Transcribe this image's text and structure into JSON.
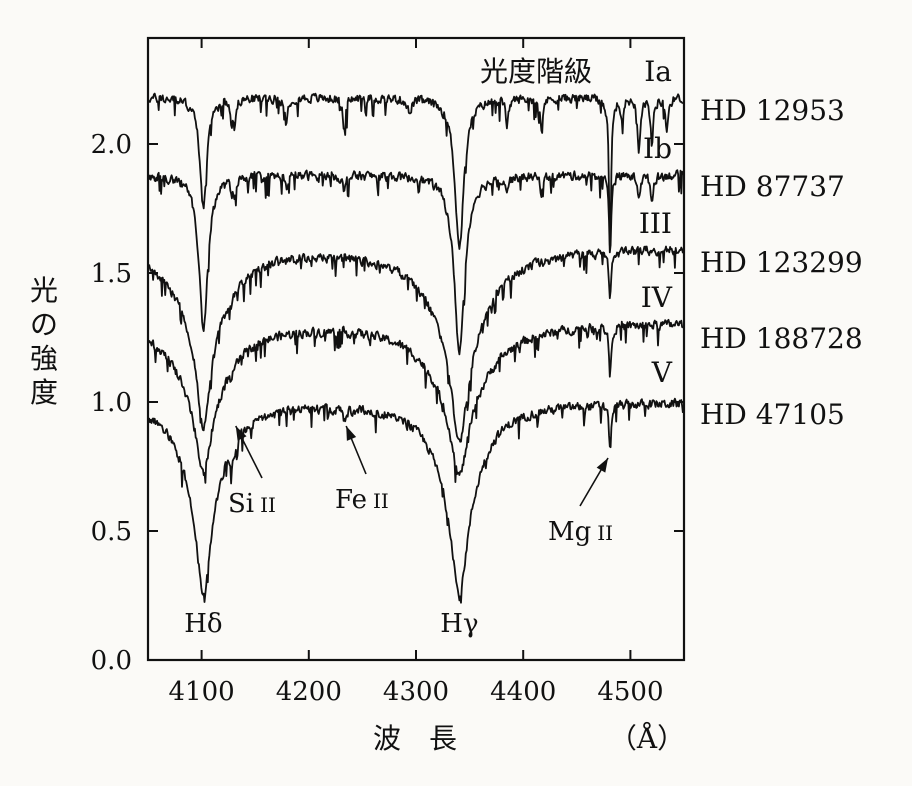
{
  "chart_data": {
    "type": "line",
    "title": "",
    "xlabel": "波　長",
    "x_unit_label": "（Å）",
    "ylabel": "光の強度",
    "xlim": [
      4050,
      4550
    ],
    "ylim": [
      0,
      2.5
    ],
    "xticks": [
      4100,
      4200,
      4300,
      4400,
      4500
    ],
    "xtick_labels": [
      "4100",
      "4200",
      "4300",
      "4400",
      "4500"
    ],
    "yticks": [
      0.0,
      0.5,
      1.0,
      1.5,
      2.0
    ],
    "ytick_labels": [
      "0.0",
      "0.5",
      "1.0",
      "1.5",
      "2.0"
    ],
    "grid": false,
    "class_header": "光度階級",
    "series": [
      {
        "name": "HD 12953",
        "luminosity_class": "Ia",
        "baseline": 2.18,
        "lines": [
          [
            4101.7,
            0.42,
            4
          ],
          [
            4128,
            0.08,
            1.2
          ],
          [
            4131,
            0.1,
            1.2
          ],
          [
            4179,
            0.1,
            1.5
          ],
          [
            4233,
            0.12,
            1.5
          ],
          [
            4294,
            0.06,
            2
          ],
          [
            4340.5,
            0.58,
            5
          ],
          [
            4385,
            0.1,
            1.5
          ],
          [
            4417,
            0.12,
            1.5
          ],
          [
            4481,
            0.6,
            1.2
          ],
          [
            4492,
            0.08,
            1.5
          ],
          [
            4508,
            0.2,
            1.5
          ],
          [
            4520,
            0.18,
            1.5
          ],
          [
            4534,
            0.12,
            1.5
          ]
        ]
      },
      {
        "name": "HD 87737",
        "luminosity_class": "Ib",
        "baseline": 1.88,
        "lines": [
          [
            4101.7,
            0.6,
            5
          ],
          [
            4128,
            0.05,
            1.2
          ],
          [
            4131,
            0.06,
            1.2
          ],
          [
            4179,
            0.05,
            1.5
          ],
          [
            4233,
            0.07,
            1.5
          ],
          [
            4340.5,
            0.68,
            6
          ],
          [
            4385,
            0.05,
            1.5
          ],
          [
            4417,
            0.06,
            1.5
          ],
          [
            4481,
            0.3,
            1.2
          ],
          [
            4508,
            0.08,
            1.5
          ],
          [
            4520,
            0.1,
            1.5
          ]
        ]
      },
      {
        "name": "HD 123299",
        "luminosity_class": "III",
        "baseline": 1.6,
        "lines": [
          [
            4101.7,
            0.35,
            7
          ],
          [
            4101.7,
            0.34,
            26
          ],
          [
            4128,
            0.04,
            1.2
          ],
          [
            4340.5,
            0.38,
            8
          ],
          [
            4340.5,
            0.38,
            30
          ],
          [
            4481,
            0.2,
            1.2
          ]
        ]
      },
      {
        "name": "HD 188728",
        "luminosity_class": "IV",
        "baseline": 1.31,
        "lines": [
          [
            4101.7,
            0.28,
            8
          ],
          [
            4101.7,
            0.3,
            28
          ],
          [
            4128,
            0.05,
            1.2
          ],
          [
            4340.5,
            0.29,
            9
          ],
          [
            4340.5,
            0.3,
            32
          ],
          [
            4481,
            0.2,
            1.2
          ]
        ]
      },
      {
        "name": "HD 47105",
        "luminosity_class": "V",
        "baseline": 1.0,
        "lines": [
          [
            4101.7,
            0.32,
            6
          ],
          [
            4101.7,
            0.44,
            20
          ],
          [
            4128,
            0.08,
            1.2
          ],
          [
            4131,
            0.05,
            1.2
          ],
          [
            4233,
            0.05,
            1.5
          ],
          [
            4340.5,
            0.32,
            7
          ],
          [
            4340.5,
            0.43,
            22
          ],
          [
            4481,
            0.18,
            1.2
          ]
        ]
      }
    ],
    "annotations": [
      {
        "label": "Si",
        "ion": "II",
        "x": 4130,
        "y": 0.92,
        "kind": "arrow"
      },
      {
        "label": "Fe",
        "ion": "II",
        "x": 4233,
        "y": 0.92,
        "kind": "arrow"
      },
      {
        "label": "Mg",
        "ion": "II",
        "x": 4481,
        "y": 0.77,
        "kind": "arrow"
      },
      {
        "label": "Hδ",
        "x": 4101.7,
        "kind": "text"
      },
      {
        "label": "Hγ",
        "x": 4340.5,
        "kind": "text"
      }
    ]
  }
}
